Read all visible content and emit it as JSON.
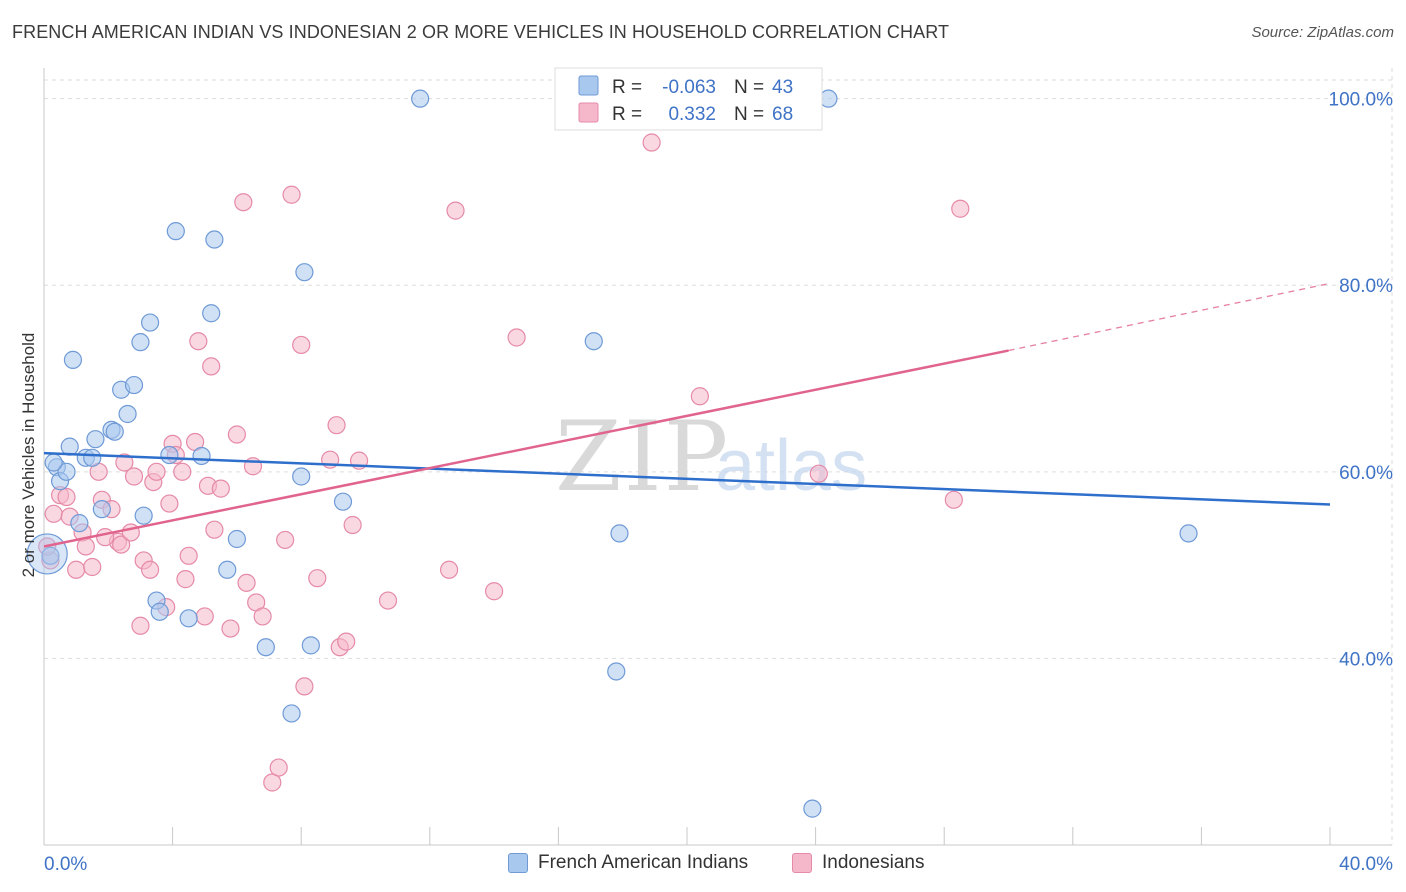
{
  "header": {
    "title": "FRENCH AMERICAN INDIAN VS INDONESIAN 2 OR MORE VEHICLES IN HOUSEHOLD CORRELATION CHART",
    "source": "Source: ZipAtlas.com"
  },
  "watermark": {
    "zip": "ZIP",
    "atlas": "atlas"
  },
  "legend_top": {
    "rows": [
      {
        "r_label": "R = ",
        "r_value": "-0.063",
        "n_label": "N = ",
        "n_value": "43"
      },
      {
        "r_label": "R = ",
        "r_value": "0.332",
        "n_label": "N = ",
        "n_value": "68"
      }
    ]
  },
  "colors": {
    "blue_fill": "#a9c8ee",
    "blue_stroke": "#6f9ad6",
    "blue_line": "#2f6fcc",
    "pink_fill": "#f5b8cb",
    "pink_stroke": "#e58aa8",
    "pink_line": "#e0648e",
    "axis_label": "#3f73c6",
    "grid": "#dddddd"
  },
  "chart_data": {
    "type": "scatter",
    "title": "FRENCH AMERICAN INDIAN VS INDONESIAN 2 OR MORE VEHICLES IN HOUSEHOLD CORRELATION CHART",
    "xlabel": "",
    "ylabel": "2 or more Vehicles in Household",
    "xlim": [
      0,
      40
    ],
    "ylim": [
      20,
      102
    ],
    "x_tick_labels": [
      "0.0%",
      "40.0%"
    ],
    "y_tick_labels": [
      "40.0%",
      "60.0%",
      "80.0%",
      "100.0%"
    ],
    "y_ticks": [
      40,
      60,
      80,
      100
    ],
    "grid": true,
    "legend_position": "bottom",
    "series": [
      {
        "name": "French American Indians",
        "r": -0.063,
        "n": 43,
        "trend": {
          "x0": 0,
          "y0": 62.0,
          "x1": 40,
          "y1": 56.5
        },
        "points": [
          [
            0.2,
            51.0
          ],
          [
            0.4,
            60.5
          ],
          [
            0.5,
            59.0
          ],
          [
            0.7,
            60.0
          ],
          [
            0.8,
            62.7
          ],
          [
            0.9,
            72.0
          ],
          [
            1.1,
            54.5
          ],
          [
            1.3,
            61.5
          ],
          [
            1.5,
            61.5
          ],
          [
            1.6,
            63.5
          ],
          [
            1.8,
            56.0
          ],
          [
            2.1,
            64.5
          ],
          [
            2.2,
            64.3
          ],
          [
            2.4,
            68.8
          ],
          [
            2.6,
            66.2
          ],
          [
            2.8,
            69.3
          ],
          [
            3.0,
            73.9
          ],
          [
            3.1,
            55.3
          ],
          [
            3.3,
            76.0
          ],
          [
            3.5,
            46.2
          ],
          [
            3.6,
            45.0
          ],
          [
            3.9,
            61.8
          ],
          [
            4.1,
            85.8
          ],
          [
            4.5,
            44.3
          ],
          [
            4.9,
            61.7
          ],
          [
            5.2,
            77.0
          ],
          [
            5.3,
            84.9
          ],
          [
            5.7,
            49.5
          ],
          [
            6.0,
            52.8
          ],
          [
            6.9,
            41.2
          ],
          [
            7.7,
            34.1
          ],
          [
            8.0,
            59.5
          ],
          [
            8.1,
            81.4
          ],
          [
            8.3,
            41.4
          ],
          [
            9.3,
            56.8
          ],
          [
            11.7,
            100.0
          ],
          [
            17.1,
            74.0
          ],
          [
            17.9,
            53.4
          ],
          [
            17.8,
            38.6
          ],
          [
            23.9,
            23.9
          ],
          [
            24.4,
            100.0
          ],
          [
            35.6,
            53.4
          ],
          [
            0.3,
            61.0
          ]
        ]
      },
      {
        "name": "Indonesians",
        "r": 0.332,
        "n": 68,
        "trend": {
          "x0": 0,
          "y0": 52.0,
          "x1": 30,
          "y1": 73.0,
          "x_dash_end": 40,
          "y_dash_end": 80.2
        },
        "points": [
          [
            0.2,
            50.5
          ],
          [
            0.3,
            55.5
          ],
          [
            0.5,
            57.5
          ],
          [
            0.7,
            57.3
          ],
          [
            0.8,
            55.2
          ],
          [
            1.0,
            49.5
          ],
          [
            1.2,
            53.5
          ],
          [
            1.3,
            52.0
          ],
          [
            1.5,
            49.8
          ],
          [
            1.7,
            60.0
          ],
          [
            1.8,
            57.0
          ],
          [
            2.1,
            56.0
          ],
          [
            2.3,
            52.5
          ],
          [
            2.4,
            52.2
          ],
          [
            2.5,
            61.0
          ],
          [
            2.7,
            53.5
          ],
          [
            2.8,
            59.5
          ],
          [
            3.0,
            43.5
          ],
          [
            3.1,
            50.5
          ],
          [
            3.3,
            49.5
          ],
          [
            3.4,
            58.9
          ],
          [
            3.5,
            60.0
          ],
          [
            3.8,
            45.5
          ],
          [
            3.9,
            56.6
          ],
          [
            4.0,
            63.0
          ],
          [
            4.1,
            61.8
          ],
          [
            4.3,
            60.0
          ],
          [
            4.4,
            48.5
          ],
          [
            4.5,
            51.0
          ],
          [
            4.7,
            63.2
          ],
          [
            4.8,
            74.0
          ],
          [
            5.0,
            44.5
          ],
          [
            5.1,
            58.5
          ],
          [
            5.2,
            71.3
          ],
          [
            5.3,
            53.8
          ],
          [
            5.5,
            58.2
          ],
          [
            5.8,
            43.2
          ],
          [
            6.0,
            64.0
          ],
          [
            6.2,
            88.9
          ],
          [
            6.3,
            48.1
          ],
          [
            6.5,
            60.6
          ],
          [
            6.6,
            46.0
          ],
          [
            6.8,
            44.5
          ],
          [
            7.1,
            26.7
          ],
          [
            7.3,
            28.3
          ],
          [
            7.5,
            52.7
          ],
          [
            7.7,
            89.7
          ],
          [
            8.0,
            73.6
          ],
          [
            8.1,
            37.0
          ],
          [
            8.5,
            48.6
          ],
          [
            8.9,
            61.3
          ],
          [
            9.1,
            65.0
          ],
          [
            9.2,
            41.2
          ],
          [
            9.4,
            41.8
          ],
          [
            9.6,
            54.3
          ],
          [
            9.8,
            61.2
          ],
          [
            10.7,
            46.2
          ],
          [
            12.6,
            49.5
          ],
          [
            12.8,
            88.0
          ],
          [
            14.0,
            47.2
          ],
          [
            14.7,
            74.4
          ],
          [
            18.9,
            95.3
          ],
          [
            20.4,
            68.1
          ],
          [
            24.1,
            59.8
          ],
          [
            28.3,
            57.0
          ],
          [
            28.5,
            88.2
          ],
          [
            0.1,
            52.0
          ],
          [
            1.9,
            53.0
          ]
        ]
      }
    ]
  },
  "legend_bottom": {
    "items": [
      {
        "label": "French American Indians"
      },
      {
        "label": "Indonesians"
      }
    ]
  }
}
